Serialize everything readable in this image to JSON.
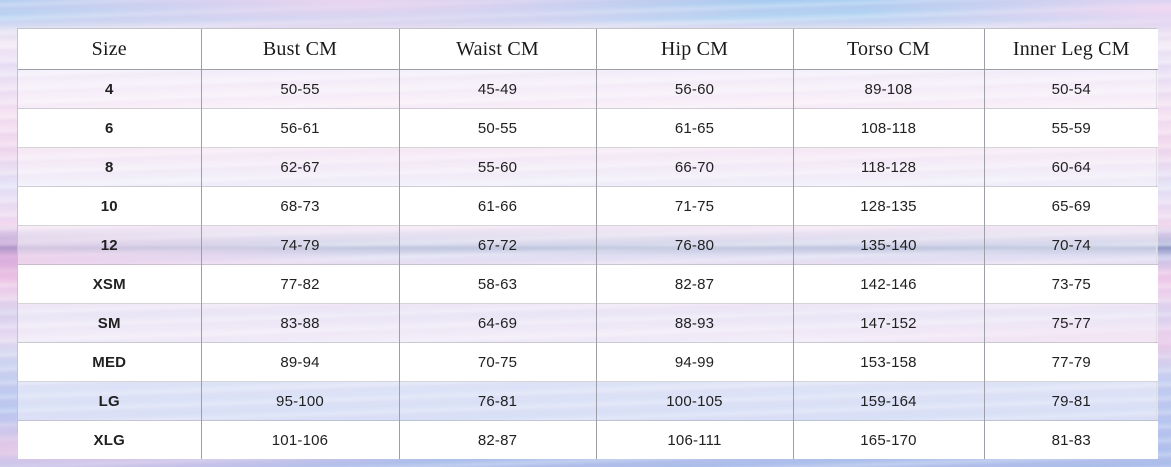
{
  "table": {
    "columns": [
      "Size",
      "Bust CM",
      "Waist CM",
      "Hip CM",
      "Torso CM",
      "Inner Leg CM"
    ],
    "rows": [
      {
        "size": "4",
        "bust": "50-55",
        "waist": "45-49",
        "hip": "56-60",
        "torso": "89-108",
        "inner_leg": "50-54"
      },
      {
        "size": "6",
        "bust": "56-61",
        "waist": "50-55",
        "hip": "61-65",
        "torso": "108-118",
        "inner_leg": "55-59"
      },
      {
        "size": "8",
        "bust": "62-67",
        "waist": "55-60",
        "hip": "66-70",
        "torso": "118-128",
        "inner_leg": "60-64"
      },
      {
        "size": "10",
        "bust": "68-73",
        "waist": "61-66",
        "hip": "71-75",
        "torso": "128-135",
        "inner_leg": "65-69"
      },
      {
        "size": "12",
        "bust": "74-79",
        "waist": "67-72",
        "hip": "76-80",
        "torso": "135-140",
        "inner_leg": "70-74"
      },
      {
        "size": "XSM",
        "bust": "77-82",
        "waist": "58-63",
        "hip": "82-87",
        "torso": "142-146",
        "inner_leg": "73-75"
      },
      {
        "size": "SM",
        "bust": "83-88",
        "waist": "64-69",
        "hip": "88-93",
        "torso": "147-152",
        "inner_leg": "75-77"
      },
      {
        "size": "MED",
        "bust": "89-94",
        "waist": "70-75",
        "hip": "94-99",
        "torso": "153-158",
        "inner_leg": "77-79"
      },
      {
        "size": "LG",
        "bust": "95-100",
        "waist": "76-81",
        "hip": "100-105",
        "torso": "159-164",
        "inner_leg": "79-81"
      },
      {
        "size": "XLG",
        "bust": "101-106",
        "waist": "82-87",
        "hip": "106-111",
        "torso": "165-170",
        "inner_leg": "81-83"
      }
    ]
  },
  "colors": {
    "grid_line": "#9e9ea6",
    "header_background": "#ffffff",
    "row_white": "#ffffff",
    "row_tint_overlay": "rgba(255,255,255,0.45)",
    "text": "#212121"
  }
}
